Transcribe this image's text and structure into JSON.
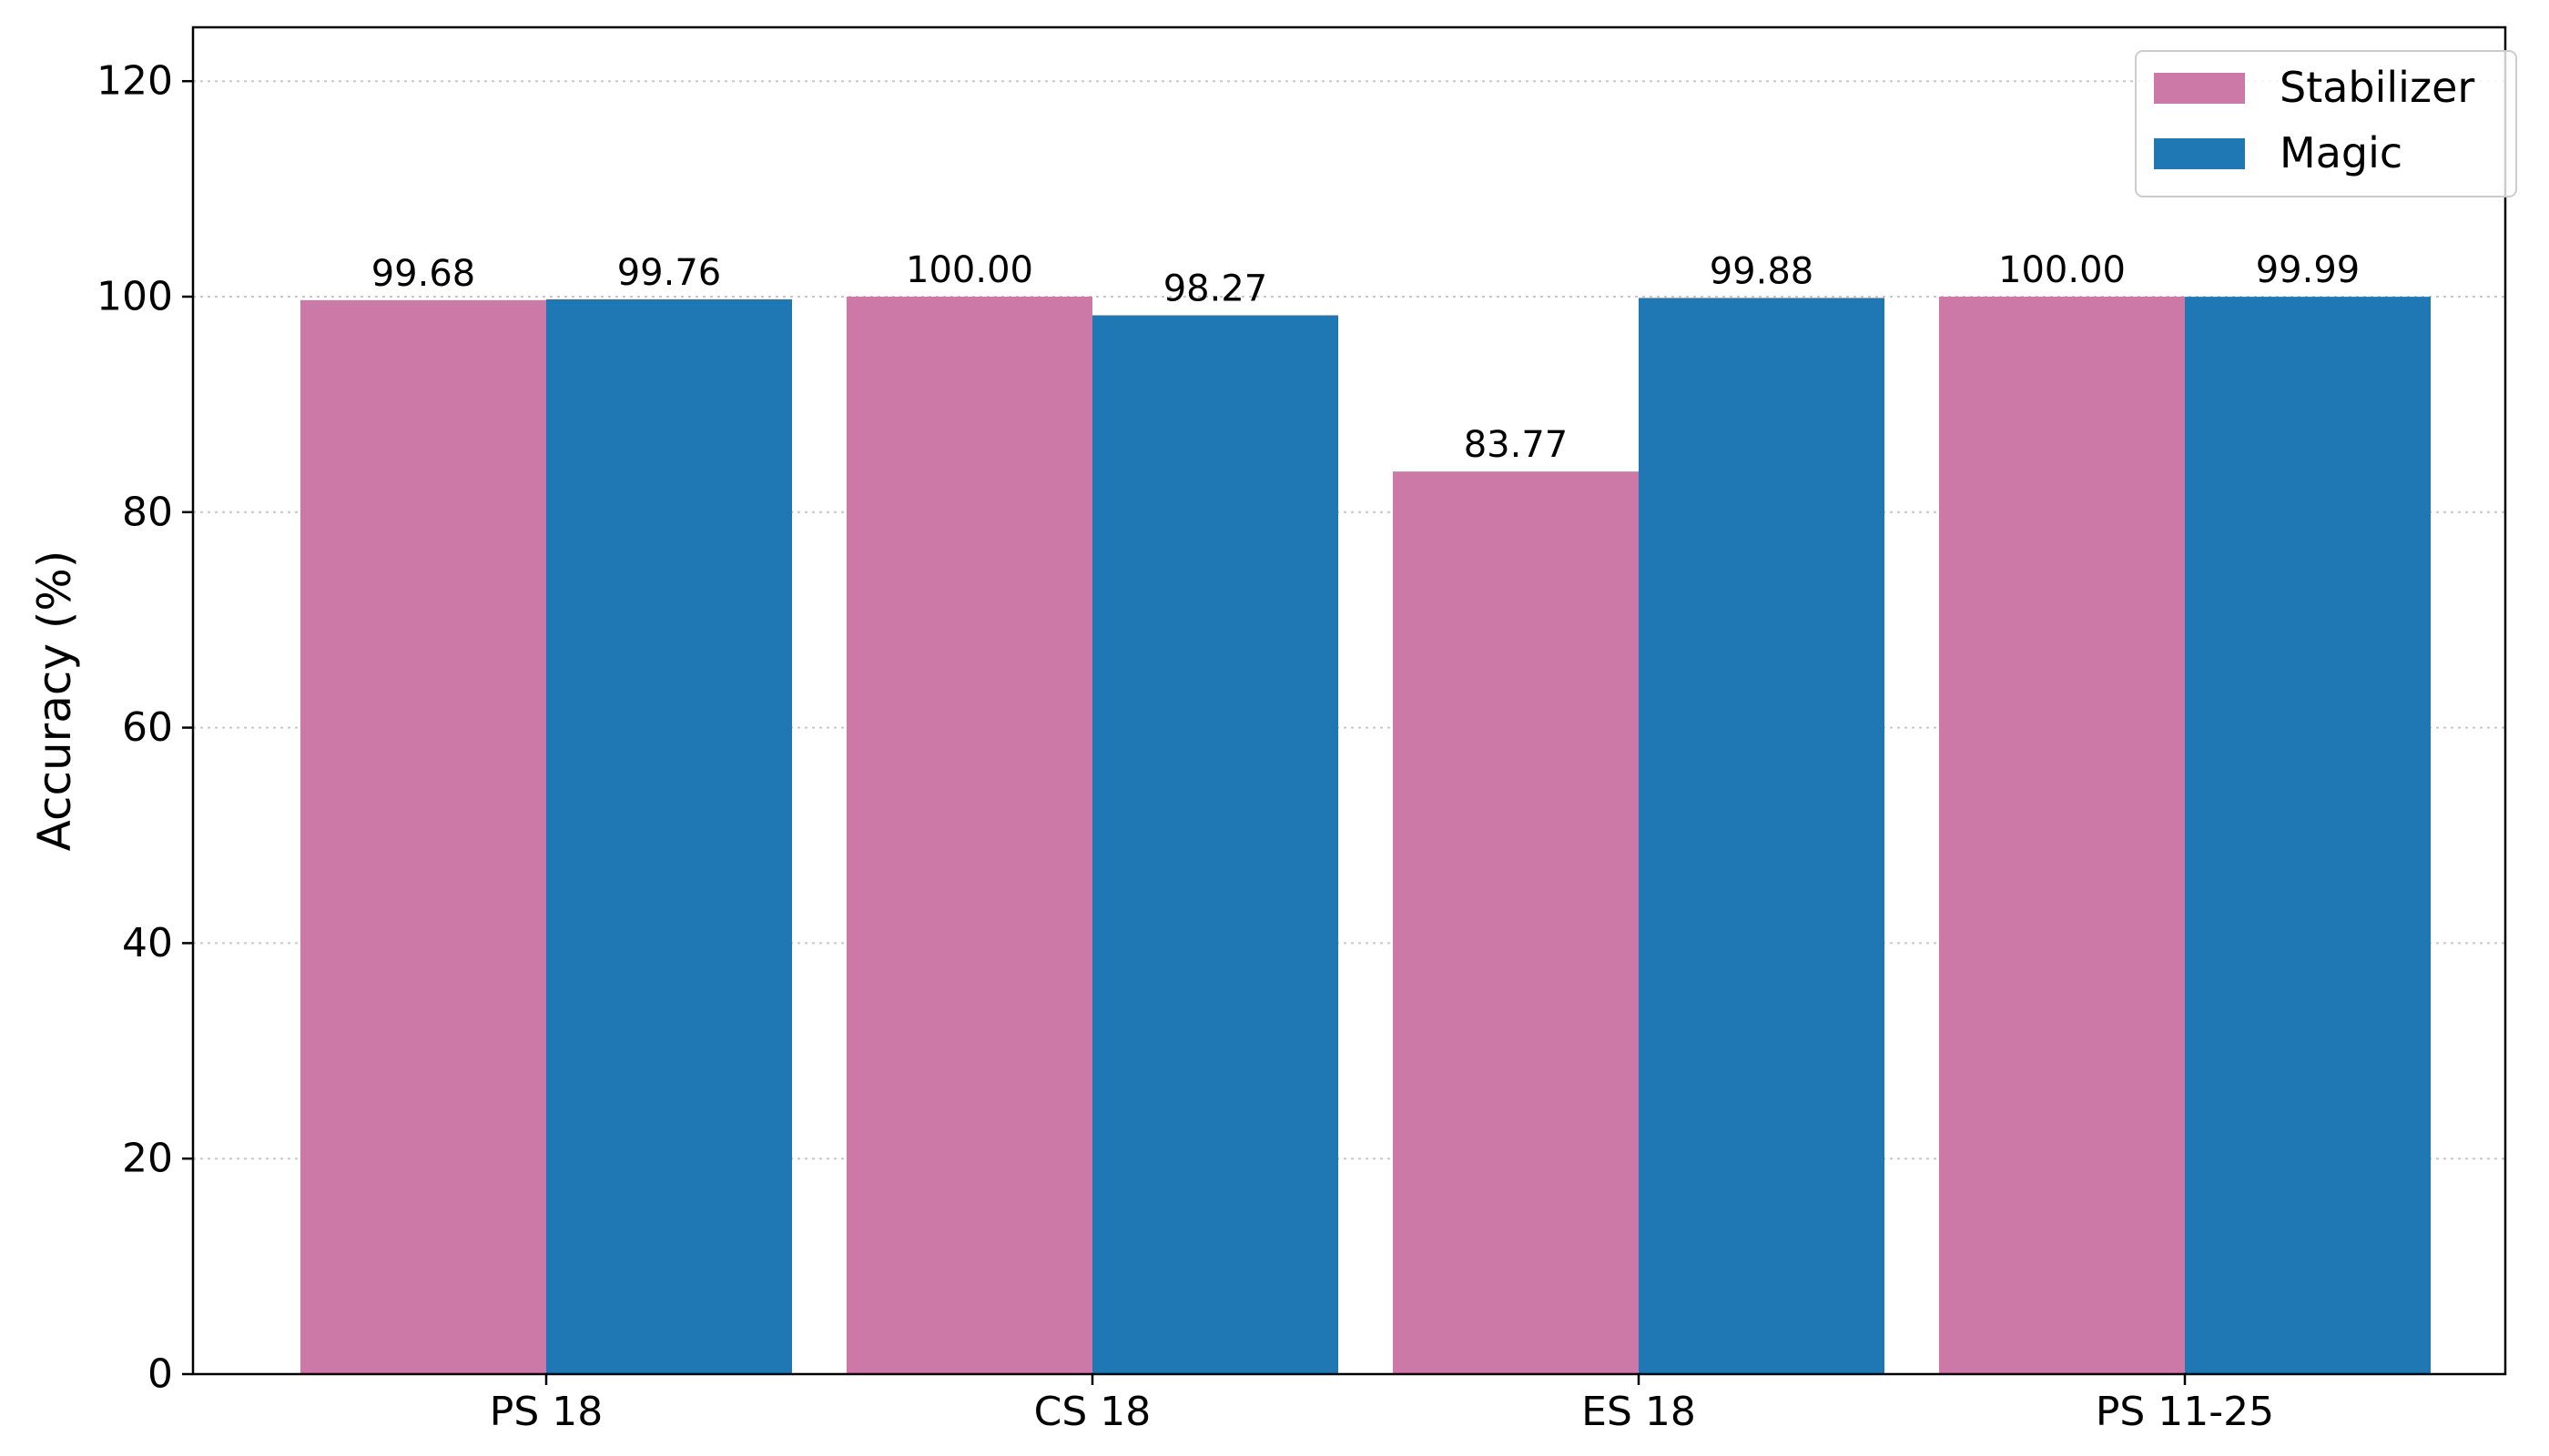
{
  "chart_data": {
    "type": "bar",
    "title": "",
    "xlabel": "",
    "ylabel": "Accuracy (%)",
    "categories": [
      "PS 18",
      "CS 18",
      "ES 18",
      "PS 11-25"
    ],
    "series": [
      {
        "name": "Stabilizer",
        "color": "#cc79a7",
        "values": [
          99.68,
          100.0,
          83.77,
          100.0
        ],
        "labels": [
          "99.68",
          "100.00",
          "83.77",
          "100.00"
        ]
      },
      {
        "name": "Magic",
        "color": "#1f77b4",
        "values": [
          99.76,
          98.27,
          99.88,
          99.99
        ],
        "labels": [
          "99.76",
          "98.27",
          "99.88",
          "99.99"
        ]
      }
    ],
    "yticks": [
      0,
      20,
      40,
      60,
      80,
      100,
      120
    ],
    "ylim": [
      0,
      125
    ],
    "grid": true,
    "grid_axis": "y",
    "legend_position": "top-right"
  }
}
